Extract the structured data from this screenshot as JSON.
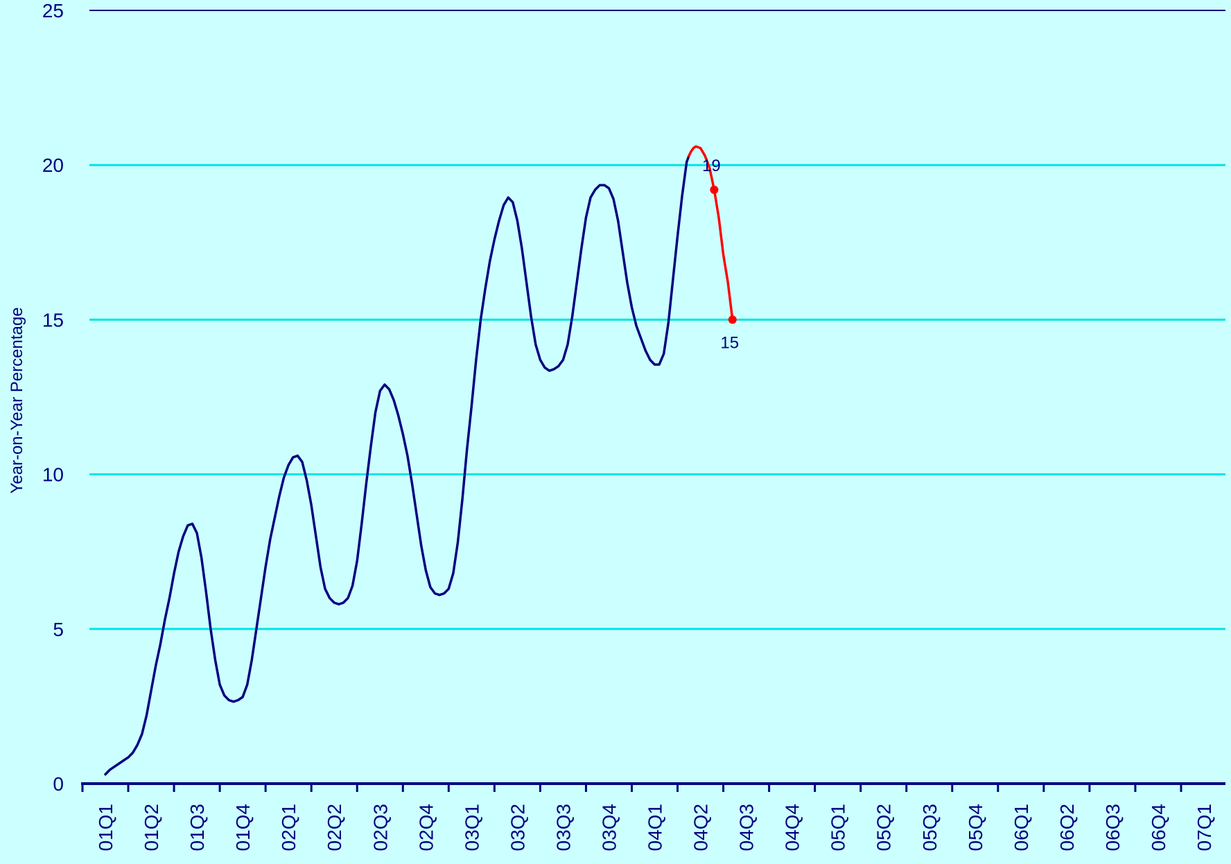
{
  "chart_data": {
    "type": "line",
    "title": "",
    "xlabel": "",
    "ylabel": "Year-on-Year Percentage",
    "ylim": [
      0,
      25
    ],
    "yticks": [
      0,
      5,
      10,
      15,
      20,
      25
    ],
    "grid": true,
    "legend": "none",
    "categories": [
      "01Q1",
      "01Q2",
      "01Q3",
      "01Q4",
      "02Q1",
      "02Q2",
      "02Q3",
      "02Q4",
      "03Q1",
      "03Q2",
      "03Q3",
      "03Q4",
      "04Q1",
      "04Q2",
      "04Q3",
      "04Q4",
      "05Q1",
      "05Q2",
      "05Q3",
      "05Q4",
      "06Q1",
      "06Q2",
      "06Q3",
      "06Q4",
      "07Q1"
    ],
    "series": [
      {
        "color": "#000080",
        "points": [
          [
            0.0,
            0.3
          ],
          [
            0.1,
            0.45
          ],
          [
            0.2,
            0.55
          ],
          [
            0.3,
            0.65
          ],
          [
            0.4,
            0.75
          ],
          [
            0.5,
            0.85
          ],
          [
            0.6,
            1.0
          ],
          [
            0.7,
            1.25
          ],
          [
            0.8,
            1.6
          ],
          [
            0.9,
            2.2
          ],
          [
            1.0,
            3.0
          ],
          [
            1.1,
            3.8
          ],
          [
            1.2,
            4.5
          ],
          [
            1.3,
            5.3
          ],
          [
            1.4,
            6.0
          ],
          [
            1.5,
            6.8
          ],
          [
            1.6,
            7.5
          ],
          [
            1.7,
            8.0
          ],
          [
            1.8,
            8.35
          ],
          [
            1.9,
            8.4
          ],
          [
            2.0,
            8.1
          ],
          [
            2.1,
            7.3
          ],
          [
            2.2,
            6.2
          ],
          [
            2.3,
            5.0
          ],
          [
            2.4,
            4.0
          ],
          [
            2.5,
            3.2
          ],
          [
            2.6,
            2.85
          ],
          [
            2.7,
            2.7
          ],
          [
            2.8,
            2.65
          ],
          [
            2.9,
            2.7
          ],
          [
            3.0,
            2.8
          ],
          [
            3.1,
            3.2
          ],
          [
            3.2,
            4.0
          ],
          [
            3.3,
            5.0
          ],
          [
            3.4,
            6.0
          ],
          [
            3.5,
            7.0
          ],
          [
            3.6,
            7.9
          ],
          [
            3.7,
            8.6
          ],
          [
            3.8,
            9.3
          ],
          [
            3.9,
            9.9
          ],
          [
            4.0,
            10.3
          ],
          [
            4.1,
            10.55
          ],
          [
            4.2,
            10.6
          ],
          [
            4.3,
            10.4
          ],
          [
            4.4,
            9.8
          ],
          [
            4.5,
            9.0
          ],
          [
            4.6,
            8.0
          ],
          [
            4.7,
            7.0
          ],
          [
            4.8,
            6.3
          ],
          [
            4.9,
            6.0
          ],
          [
            5.0,
            5.85
          ],
          [
            5.1,
            5.8
          ],
          [
            5.2,
            5.85
          ],
          [
            5.3,
            6.0
          ],
          [
            5.4,
            6.4
          ],
          [
            5.5,
            7.2
          ],
          [
            5.6,
            8.4
          ],
          [
            5.7,
            9.7
          ],
          [
            5.8,
            10.9
          ],
          [
            5.9,
            12.0
          ],
          [
            6.0,
            12.7
          ],
          [
            6.1,
            12.9
          ],
          [
            6.2,
            12.75
          ],
          [
            6.3,
            12.4
          ],
          [
            6.4,
            11.9
          ],
          [
            6.5,
            11.3
          ],
          [
            6.6,
            10.6
          ],
          [
            6.7,
            9.7
          ],
          [
            6.8,
            8.7
          ],
          [
            6.9,
            7.7
          ],
          [
            7.0,
            6.9
          ],
          [
            7.1,
            6.35
          ],
          [
            7.2,
            6.15
          ],
          [
            7.3,
            6.1
          ],
          [
            7.4,
            6.15
          ],
          [
            7.5,
            6.3
          ],
          [
            7.6,
            6.8
          ],
          [
            7.7,
            7.8
          ],
          [
            7.8,
            9.2
          ],
          [
            7.9,
            10.8
          ],
          [
            8.0,
            12.2
          ],
          [
            8.1,
            13.7
          ],
          [
            8.2,
            15.0
          ],
          [
            8.3,
            16.0
          ],
          [
            8.4,
            16.9
          ],
          [
            8.5,
            17.6
          ],
          [
            8.6,
            18.2
          ],
          [
            8.7,
            18.7
          ],
          [
            8.8,
            18.95
          ],
          [
            8.9,
            18.8
          ],
          [
            9.0,
            18.2
          ],
          [
            9.1,
            17.3
          ],
          [
            9.2,
            16.2
          ],
          [
            9.3,
            15.1
          ],
          [
            9.4,
            14.2
          ],
          [
            9.5,
            13.7
          ],
          [
            9.6,
            13.45
          ],
          [
            9.7,
            13.35
          ],
          [
            9.8,
            13.4
          ],
          [
            9.9,
            13.5
          ],
          [
            10.0,
            13.7
          ],
          [
            10.1,
            14.2
          ],
          [
            10.2,
            15.1
          ],
          [
            10.3,
            16.2
          ],
          [
            10.4,
            17.3
          ],
          [
            10.5,
            18.3
          ],
          [
            10.6,
            18.95
          ],
          [
            10.7,
            19.2
          ],
          [
            10.8,
            19.35
          ],
          [
            10.9,
            19.35
          ],
          [
            11.0,
            19.25
          ],
          [
            11.1,
            18.9
          ],
          [
            11.2,
            18.2
          ],
          [
            11.3,
            17.2
          ],
          [
            11.4,
            16.2
          ],
          [
            11.5,
            15.4
          ],
          [
            11.6,
            14.8
          ],
          [
            11.7,
            14.4
          ],
          [
            11.8,
            14.0
          ],
          [
            11.9,
            13.7
          ],
          [
            12.0,
            13.55
          ],
          [
            12.1,
            13.55
          ],
          [
            12.2,
            13.9
          ],
          [
            12.3,
            14.9
          ],
          [
            12.4,
            16.3
          ],
          [
            12.5,
            17.7
          ],
          [
            12.6,
            19.0
          ],
          [
            12.7,
            20.1
          ],
          [
            12.75,
            20.3
          ]
        ]
      },
      {
        "color": "#ff0000",
        "points": [
          [
            12.75,
            20.3
          ],
          [
            12.8,
            20.45
          ],
          [
            12.85,
            20.55
          ],
          [
            12.9,
            20.6
          ],
          [
            13.0,
            20.55
          ],
          [
            13.1,
            20.3
          ],
          [
            13.2,
            19.9
          ],
          [
            13.3,
            19.2
          ],
          [
            13.4,
            18.3
          ],
          [
            13.5,
            17.1
          ],
          [
            13.6,
            16.2
          ],
          [
            13.7,
            15.0
          ]
        ],
        "markers": [
          {
            "x": 13.3,
            "y": 19.2,
            "label": "19"
          },
          {
            "x": 13.7,
            "y": 15.0,
            "label": "15"
          }
        ]
      }
    ]
  }
}
